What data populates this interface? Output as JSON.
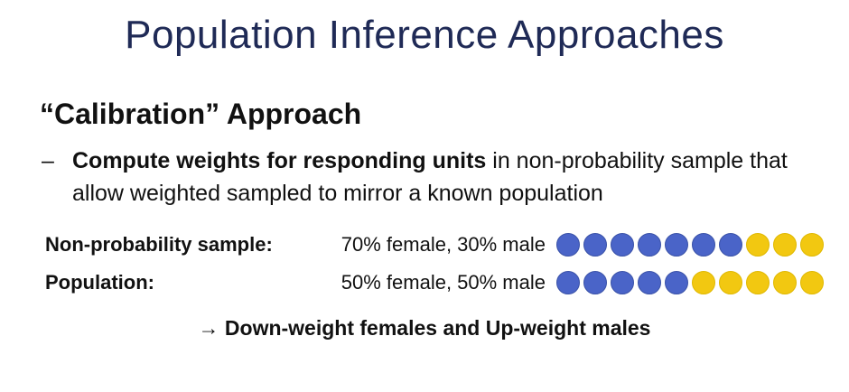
{
  "title": "Population Inference Approaches",
  "heading": "“Calibration” Approach",
  "bullet": {
    "dash": "–",
    "bold": "Compute weights for responding units",
    "rest": " in non-probability sample that allow weighted sampled to mirror a known population"
  },
  "rows": [
    {
      "label": "Non-probability sample:",
      "pct": "70% female, 30% male",
      "female_count": 7,
      "male_count": 3
    },
    {
      "label": "Population:",
      "pct": "50% female, 50% male",
      "female_count": 5,
      "male_count": 5
    }
  ],
  "colors": {
    "female": "#4a64c8",
    "male": "#f2c811",
    "title": "#1f2a56"
  },
  "conclusion": {
    "arrow": "→",
    "text": "Down-weight females and Up-weight males"
  }
}
